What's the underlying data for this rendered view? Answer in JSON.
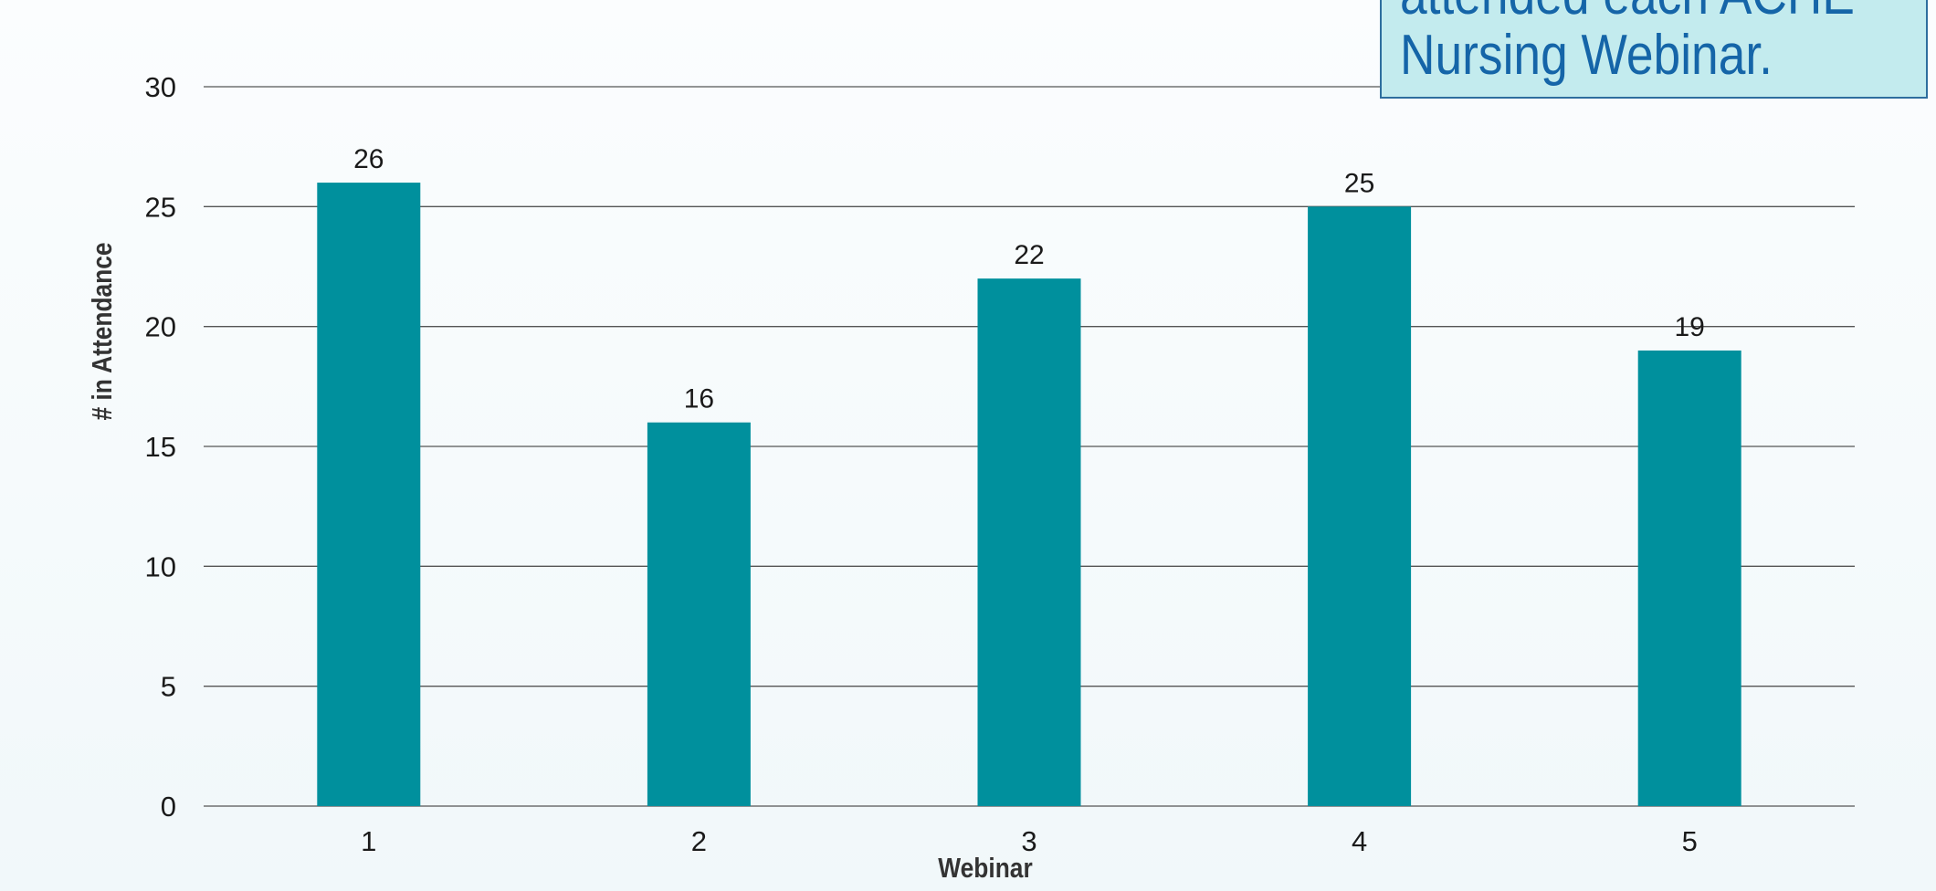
{
  "chart_data": {
    "type": "bar",
    "categories": [
      "1",
      "2",
      "3",
      "4",
      "5"
    ],
    "values": [
      26,
      16,
      22,
      25,
      19
    ],
    "data_labels": [
      "26",
      "16",
      "22",
      "25",
      "19"
    ],
    "xlabel": "Webinar",
    "ylabel": "# in Attendance",
    "ylim": [
      0,
      30
    ],
    "yticks": [
      0,
      5,
      10,
      15,
      20,
      25,
      30
    ],
    "grid": true,
    "bar_color": "#00909d",
    "grid_color": "#555555"
  },
  "callout": {
    "line1": "attended each ACHE",
    "line2": "Nursing Webinar."
  }
}
